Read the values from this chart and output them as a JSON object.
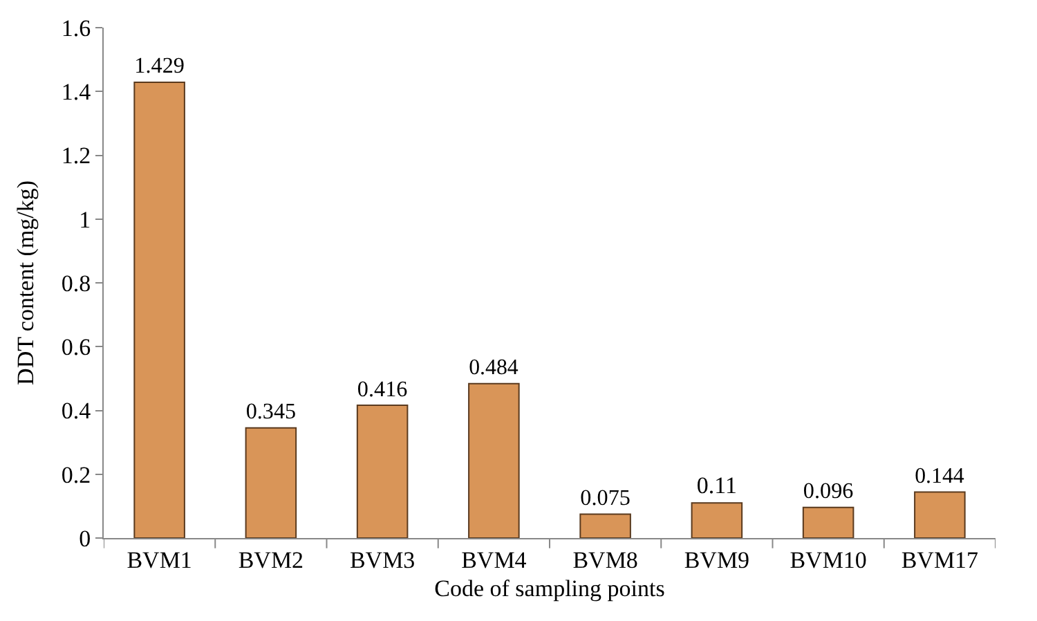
{
  "chart_data": {
    "type": "bar",
    "xlabel": "Code of sampling points",
    "ylabel": "DDT content (mg/kg)",
    "categories": [
      "BVM1",
      "BVM2",
      "BVM3",
      "BVM4",
      "BVM8",
      "BVM9",
      "BVM10",
      "BVM17"
    ],
    "values": [
      1.429,
      0.345,
      0.416,
      0.484,
      0.075,
      0.11,
      0.096,
      0.144
    ],
    "color": "#d99558",
    "ylim": [
      0,
      1.6
    ],
    "yticks": [
      0,
      0.2,
      0.4,
      0.6,
      0.8,
      1,
      1.2,
      1.4,
      1.6
    ],
    "data_labels": true,
    "grid": false,
    "legend": false
  }
}
